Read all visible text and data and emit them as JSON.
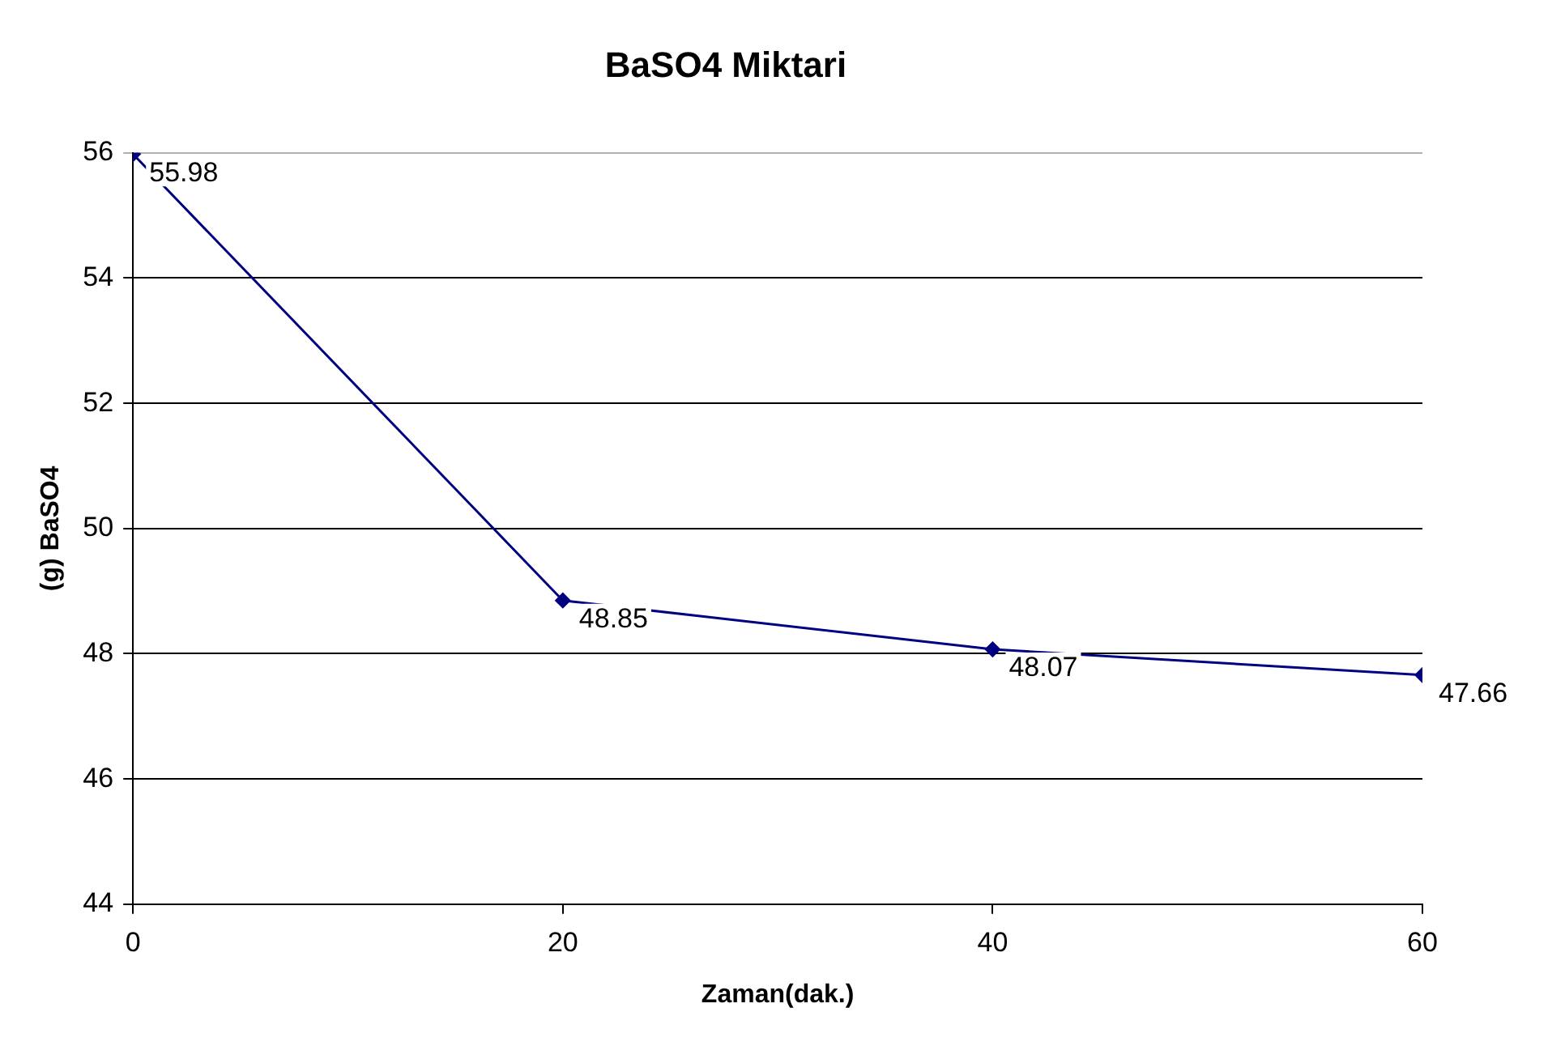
{
  "chart_data": {
    "type": "line",
    "title": "BaSO4 Miktari",
    "xlabel": "Zaman(dak.)",
    "ylabel": "(g) BaSO4",
    "x": [
      0,
      20,
      40,
      60
    ],
    "series": [
      {
        "color": "#000080",
        "values": [
          55.98,
          48.85,
          48.07,
          47.66
        ]
      }
    ],
    "xlim": [
      0,
      60
    ],
    "xticks": [
      0,
      20,
      40,
      60
    ],
    "ylim": [
      44,
      56
    ],
    "yticks": [
      44,
      46,
      48,
      50,
      52,
      54,
      56
    ],
    "grid": "y",
    "legend": false,
    "marker": "diamond",
    "line_style": "solid",
    "data_labels": true
  }
}
